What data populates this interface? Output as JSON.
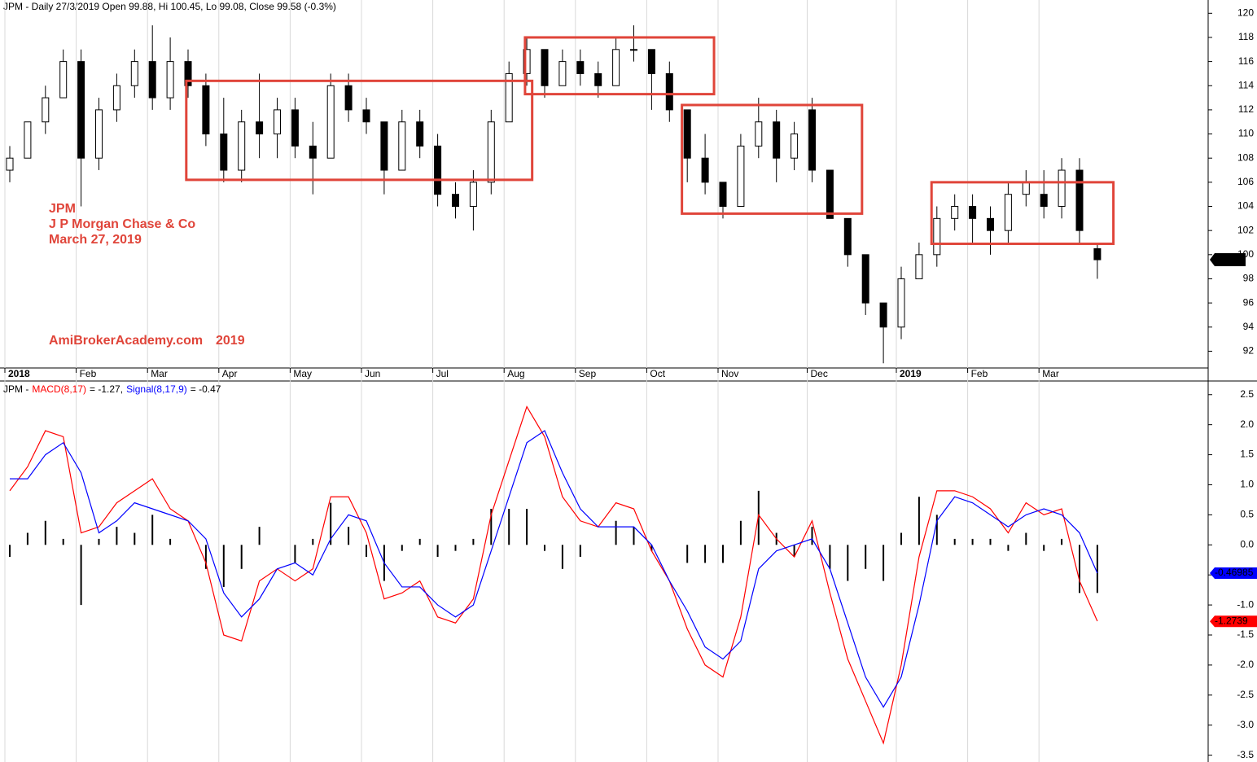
{
  "chart_data": [
    {
      "type": "candlestick",
      "title": "JPM - Daily 27/3/2019 Open 99.88, Hi 100.45, Lo 99.08, Close 99.58 (-0.3%)",
      "annotations": [
        "JPM",
        "J P Morgan Chase & Co",
        "March 27, 2019",
        "AmiBrokerAcademy.com",
        "2019"
      ],
      "categories": [
        "2018",
        null,
        null,
        null,
        "Feb",
        null,
        null,
        null,
        "Mar",
        null,
        null,
        null,
        "Apr",
        null,
        null,
        null,
        "May",
        null,
        null,
        null,
        "Jun",
        null,
        null,
        null,
        "Jul",
        null,
        null,
        null,
        "Aug",
        null,
        null,
        null,
        "Sep",
        null,
        null,
        null,
        "Oct",
        null,
        null,
        null,
        "Nov",
        null,
        null,
        null,
        null,
        "Dec",
        null,
        null,
        null,
        null,
        "2019",
        null,
        null,
        null,
        "Feb",
        null,
        null,
        null,
        "Mar",
        null,
        null,
        null
      ],
      "open": [
        107,
        108,
        111,
        113,
        116,
        108,
        112,
        114,
        116,
        113,
        116,
        114,
        110,
        107,
        111,
        110,
        112,
        109,
        108,
        114,
        112,
        111,
        107,
        111,
        109,
        105,
        104,
        106,
        111,
        115,
        117,
        114,
        116,
        115,
        114,
        117,
        117,
        115,
        112,
        108,
        106,
        104,
        109,
        111,
        108,
        112,
        107,
        103,
        100,
        96,
        94,
        98,
        100,
        103,
        104,
        103,
        102,
        105,
        105,
        104,
        107,
        100.5
      ],
      "high": [
        109,
        111,
        114,
        117,
        117,
        113,
        115,
        117,
        119,
        118,
        117,
        115,
        113,
        112,
        115,
        113,
        113,
        111,
        115,
        115,
        113,
        111,
        112,
        112,
        110,
        106,
        107,
        112,
        116,
        118,
        117,
        117,
        117,
        116,
        118,
        119,
        117,
        116,
        112,
        110,
        106,
        110,
        113,
        112,
        111,
        113,
        107,
        103,
        100,
        96,
        99,
        101,
        104,
        105,
        105,
        104,
        106,
        107,
        107,
        108,
        108,
        101
      ],
      "low": [
        106,
        108,
        110,
        113,
        104,
        107,
        111,
        113,
        112,
        112,
        113,
        109,
        106,
        106,
        108,
        108,
        108,
        105,
        108,
        111,
        110,
        105,
        107,
        108,
        104,
        103,
        102,
        105,
        111,
        114,
        113,
        114,
        114,
        113,
        114,
        116,
        112,
        111,
        106,
        105,
        103,
        104,
        108,
        106,
        107,
        106,
        103,
        99,
        95,
        91,
        93,
        98,
        99,
        102,
        101,
        100,
        101,
        104,
        103,
        103,
        101,
        98
      ],
      "close": [
        108,
        111,
        113,
        116,
        108,
        112,
        114,
        116,
        113,
        116,
        114,
        110,
        107,
        111,
        110,
        112,
        109,
        108,
        114,
        112,
        111,
        107,
        111,
        109,
        105,
        104,
        106,
        111,
        115,
        117,
        114,
        116,
        115,
        114,
        117,
        117,
        115,
        112,
        108,
        106,
        104,
        109,
        111,
        108,
        110,
        107,
        103,
        100,
        96,
        94,
        98,
        100,
        103,
        104,
        103,
        102,
        105,
        106,
        104,
        107,
        102,
        99.58
      ],
      "color_up": "#ffffff",
      "color_down": "#000000",
      "ylim": [
        89.6,
        121.1
      ],
      "yticks": [
        92,
        94,
        96,
        98,
        100,
        102,
        104,
        106,
        108,
        110,
        112,
        114,
        116,
        118,
        120
      ],
      "last_value": 99.58,
      "box_color": "#e0453a",
      "boxes": [
        {
          "x": [
            9.9,
            29.3
          ],
          "y": [
            106.2,
            114.4
          ]
        },
        {
          "x": [
            28.9,
            39.5
          ],
          "y": [
            113.3,
            118.0
          ]
        },
        {
          "x": [
            37.7,
            47.8
          ],
          "y": [
            103.4,
            112.4
          ]
        },
        {
          "x": [
            51.7,
            61.9
          ],
          "y": [
            100.9,
            106.0
          ]
        }
      ]
    },
    {
      "type": "macd",
      "prefix": "JPM -",
      "ylim": [
        -3.6,
        2.7
      ],
      "yticks": [
        2.5,
        {
          "value": 2,
          "label": "2.0"
        },
        1.5,
        {
          "value": 1,
          "label": "1.0"
        },
        0.5,
        {
          "value": 0,
          "label": "0.0"
        },
        -0.5,
        {
          "value": -1,
          "label": "-1.0"
        },
        -1.5,
        {
          "value": -2,
          "label": "-2.0"
        },
        -2.5,
        {
          "value": -3,
          "label": "-3.0"
        },
        -3.5
      ],
      "series": [
        {
          "name": "MACD(8,17)",
          "legend_value": "= -1.27,",
          "color": "#ff0000",
          "end_value": -1.2739,
          "values": [
            0.9,
            1.3,
            1.9,
            1.8,
            0.2,
            0.3,
            0.7,
            0.9,
            1.1,
            0.6,
            0.4,
            -0.3,
            -1.5,
            -1.6,
            -0.6,
            -0.4,
            -0.6,
            -0.4,
            0.8,
            0.8,
            0.2,
            -0.9,
            -0.8,
            -0.6,
            -1.2,
            -1.3,
            -0.9,
            0.5,
            1.4,
            2.3,
            1.8,
            0.8,
            0.4,
            0.3,
            0.7,
            0.6,
            -0.1,
            -0.6,
            -1.4,
            -2.0,
            -2.2,
            -1.2,
            0.5,
            0.1,
            -0.2,
            0.4,
            -0.8,
            -1.9,
            -2.6,
            -3.3,
            -2.0,
            -0.2,
            0.9,
            0.9,
            0.8,
            0.6,
            0.2,
            0.7,
            0.5,
            0.6,
            -0.6,
            -1.27
          ]
        },
        {
          "name": "Signal(8,17,9)",
          "legend_value": "= -0.47",
          "color": "#0000ff",
          "end_value": -0.46985,
          "values": [
            1.1,
            1.1,
            1.5,
            1.7,
            1.2,
            0.2,
            0.4,
            0.7,
            0.6,
            0.5,
            0.4,
            0.1,
            -0.8,
            -1.2,
            -0.9,
            -0.4,
            -0.3,
            -0.5,
            0.1,
            0.5,
            0.4,
            -0.3,
            -0.7,
            -0.7,
            -1.0,
            -1.2,
            -1.0,
            -0.1,
            0.8,
            1.7,
            1.9,
            1.2,
            0.6,
            0.3,
            0.3,
            0.3,
            0.0,
            -0.6,
            -1.1,
            -1.7,
            -1.9,
            -1.6,
            -0.4,
            -0.1,
            0.0,
            0.1,
            -0.4,
            -1.3,
            -2.2,
            -2.7,
            -2.2,
            -1.0,
            0.4,
            0.8,
            0.7,
            0.5,
            0.3,
            0.5,
            0.6,
            0.5,
            0.2,
            -0.47
          ]
        }
      ],
      "histogram": {
        "color": "#000000",
        "values": [
          -0.2,
          0.2,
          0.4,
          0.1,
          -1.0,
          0.1,
          0.3,
          0.2,
          0.5,
          0.1,
          0.0,
          -0.4,
          -0.7,
          -0.4,
          0.3,
          0.0,
          -0.3,
          0.1,
          0.7,
          0.3,
          -0.2,
          -0.6,
          -0.1,
          0.1,
          -0.2,
          -0.1,
          0.1,
          0.6,
          0.6,
          0.6,
          -0.1,
          -0.4,
          -0.2,
          0.0,
          0.4,
          0.3,
          -0.1,
          0.0,
          -0.3,
          -0.3,
          -0.3,
          0.4,
          0.9,
          0.2,
          -0.2,
          0.3,
          -0.4,
          -0.6,
          -0.4,
          -0.6,
          0.2,
          0.8,
          0.5,
          0.1,
          0.1,
          0.1,
          -0.1,
          0.2,
          -0.1,
          0.1,
          -0.8,
          -0.8
        ]
      }
    }
  ]
}
